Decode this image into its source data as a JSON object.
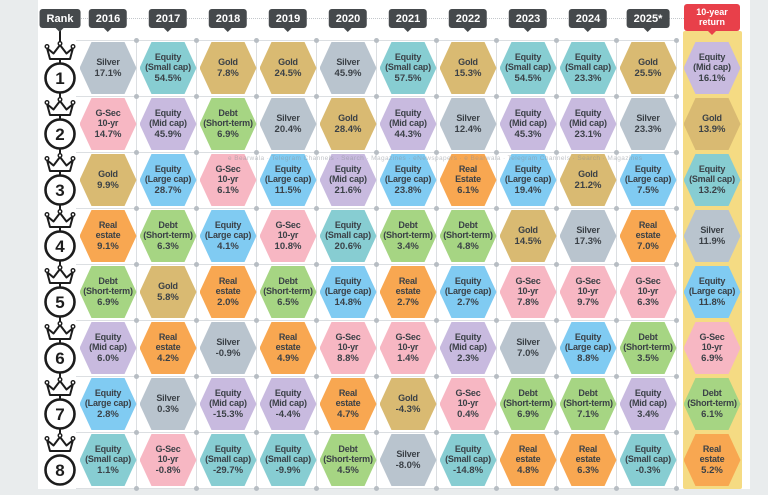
{
  "watermark": "e Bearwala · Telegram Channels · Search · Magazines · eNewspapers · e Bearwala · Telegram Channels · Search · Magazines",
  "colors": {
    "page_bg": "#e9eced",
    "panel_bg": "#ffffff",
    "header_bg": "#45494c",
    "header_text": "#ffffff",
    "ten_year_header_bg": "#e8404a",
    "ten_year_band": "#f5db83",
    "grid_line": "#dcdfe2",
    "grid_dot": "#b7bdc3",
    "cell_text": "#3b4147",
    "rank_ink": "#1c1c1c"
  },
  "chart_data": {
    "type": "table",
    "title": "Annual ranking of asset-class returns (rank 1 = best, 8 = worst)",
    "rank_header": "Rank",
    "last_column": "10-year return",
    "columns": [
      "2016",
      "2017",
      "2018",
      "2019",
      "2020",
      "2021",
      "2022",
      "2023",
      "2024",
      "2025*"
    ],
    "ranks": [
      "1",
      "2",
      "3",
      "4",
      "5",
      "6",
      "7",
      "8"
    ],
    "assets": {
      "silver": {
        "label": "Silver",
        "color": "#b9c4ce"
      },
      "gold": {
        "label": "Gold",
        "color": "#d9ba72"
      },
      "equity_small": {
        "label": "Equity\n(Small cap)",
        "color": "#87cdd2"
      },
      "equity_mid": {
        "label": "Equity\n(Mid cap)",
        "color": "#c8badf"
      },
      "equity_large": {
        "label": "Equity\n(Large cap)",
        "color": "#80cbf2"
      },
      "gsec": {
        "label": "G-Sec\n10-yr",
        "color": "#f7b7c3"
      },
      "debt": {
        "label": "Debt\n(Short-term)",
        "color": "#a6d583"
      },
      "real_estate": {
        "label": "Real\nestate",
        "color": "#f8a751"
      }
    },
    "rows": [
      {
        "rank": "1",
        "cells": [
          [
            "silver",
            "17.1%"
          ],
          [
            "equity_small",
            "54.5%"
          ],
          [
            "gold",
            "7.8%"
          ],
          [
            "gold",
            "24.5%"
          ],
          [
            "silver",
            "45.9%"
          ],
          [
            "equity_small",
            "57.5%"
          ],
          [
            "gold",
            "15.3%"
          ],
          [
            "equity_small",
            "54.5%"
          ],
          [
            "equity_small",
            "23.3%"
          ],
          [
            "gold",
            "25.5%"
          ],
          [
            "equity_mid",
            "16.1%"
          ]
        ]
      },
      {
        "rank": "2",
        "cells": [
          [
            "gsec",
            "14.7%"
          ],
          [
            "equity_mid",
            "45.9%"
          ],
          [
            "debt",
            "6.9%"
          ],
          [
            "silver",
            "20.4%"
          ],
          [
            "gold",
            "28.4%"
          ],
          [
            "equity_mid",
            "44.3%"
          ],
          [
            "silver",
            "12.4%"
          ],
          [
            "equity_mid",
            "45.3%"
          ],
          [
            "equity_mid",
            "23.1%"
          ],
          [
            "silver",
            "23.3%"
          ],
          [
            "gold",
            "13.9%"
          ]
        ]
      },
      {
        "rank": "3",
        "cells": [
          [
            "gold",
            "9.9%"
          ],
          [
            "equity_large",
            "28.7%"
          ],
          [
            "gsec",
            "6.1%"
          ],
          [
            "equity_large",
            "11.5%"
          ],
          [
            "equity_mid",
            "21.6%"
          ],
          [
            "equity_large",
            "23.8%"
          ],
          [
            "real_estate",
            "6.1%",
            "Real\nEstate"
          ],
          [
            "equity_large",
            "19.4%"
          ],
          [
            "gold",
            "21.2%"
          ],
          [
            "equity_large",
            "7.5%"
          ],
          [
            "equity_small",
            "13.2%"
          ]
        ]
      },
      {
        "rank": "4",
        "cells": [
          [
            "real_estate",
            "9.1%"
          ],
          [
            "debt",
            "6.3%"
          ],
          [
            "equity_large",
            "4.1%"
          ],
          [
            "gsec",
            "10.8%"
          ],
          [
            "equity_small",
            "20.6%"
          ],
          [
            "debt",
            "3.4%"
          ],
          [
            "debt",
            "4.8%"
          ],
          [
            "gold",
            "14.5%"
          ],
          [
            "silver",
            "17.3%"
          ],
          [
            "real_estate",
            "7.0%"
          ],
          [
            "silver",
            "11.9%"
          ]
        ]
      },
      {
        "rank": "5",
        "cells": [
          [
            "debt",
            "6.9%"
          ],
          [
            "gold",
            "5.8%"
          ],
          [
            "real_estate",
            "2.0%"
          ],
          [
            "debt",
            "6.5%"
          ],
          [
            "equity_large",
            "14.8%"
          ],
          [
            "real_estate",
            "2.7%"
          ],
          [
            "equity_large",
            "2.7%"
          ],
          [
            "gsec",
            "7.8%"
          ],
          [
            "gsec",
            "9.7%"
          ],
          [
            "gsec",
            "6.3%"
          ],
          [
            "equity_large",
            "11.8%"
          ]
        ]
      },
      {
        "rank": "6",
        "cells": [
          [
            "equity_mid",
            "6.0%"
          ],
          [
            "real_estate",
            "4.2%"
          ],
          [
            "silver",
            "-0.9%"
          ],
          [
            "real_estate",
            "4.9%"
          ],
          [
            "gsec",
            "8.8%"
          ],
          [
            "gsec",
            "1.4%"
          ],
          [
            "equity_mid",
            "2.3%"
          ],
          [
            "silver",
            "7.0%"
          ],
          [
            "equity_large",
            "8.8%"
          ],
          [
            "debt",
            "3.5%"
          ],
          [
            "gsec",
            "6.9%"
          ]
        ]
      },
      {
        "rank": "7",
        "cells": [
          [
            "equity_large",
            "2.8%"
          ],
          [
            "silver",
            "0.3%"
          ],
          [
            "equity_mid",
            "-15.3%"
          ],
          [
            "equity_mid",
            "-4.4%"
          ],
          [
            "real_estate",
            "4.7%"
          ],
          [
            "gold",
            "-4.3%"
          ],
          [
            "gsec",
            "0.4%"
          ],
          [
            "debt",
            "6.9%"
          ],
          [
            "debt",
            "7.1%"
          ],
          [
            "equity_mid",
            "3.4%"
          ],
          [
            "debt",
            "6.1%"
          ]
        ]
      },
      {
        "rank": "8",
        "cells": [
          [
            "equity_small",
            "1.1%"
          ],
          [
            "gsec",
            "-0.8%"
          ],
          [
            "equity_small",
            "-29.7%"
          ],
          [
            "equity_small",
            "-9.9%"
          ],
          [
            "debt",
            "4.5%"
          ],
          [
            "silver",
            "-8.0%"
          ],
          [
            "equity_small",
            "-14.8%"
          ],
          [
            "real_estate",
            "4.8%"
          ],
          [
            "real_estate",
            "6.3%"
          ],
          [
            "equity_small",
            "-0.3%"
          ],
          [
            "real_estate",
            "5.2%"
          ]
        ]
      }
    ]
  }
}
